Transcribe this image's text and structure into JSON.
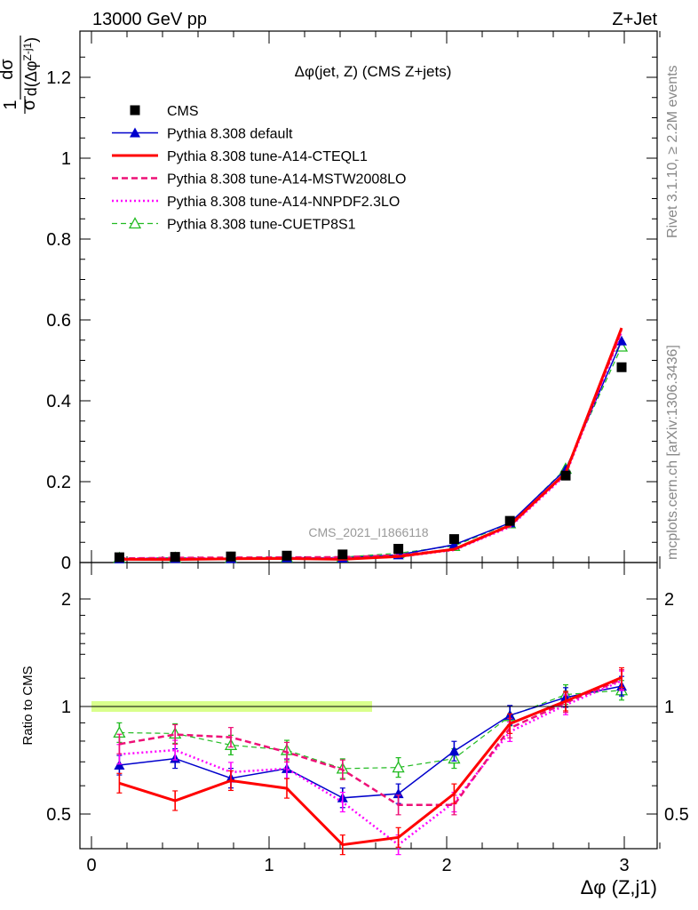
{
  "header": {
    "left": "13000 GeV pp",
    "right": "Z+Jet"
  },
  "plot_title": "Δφ(jet, Z) (CMS Z+jets)",
  "y_axis_label_top": "1/σ dσ/d(Δφ^(Z-j1))",
  "y_axis_label_bottom": "Ratio to CMS",
  "x_axis_label": "Δφ (Z,j1)",
  "side_labels": {
    "rivet": "Rivet 3.1.10, ≥ 2.2M events",
    "source": "mcplots.cern.ch [arXiv:1306.3436]"
  },
  "watermark": "CMS_2021_I1866118",
  "colors": {
    "data": "#000000",
    "default": "#0000cc",
    "cteql1": "#ff0000",
    "mstw": "#ee1077",
    "nnpdf": "#ff00ff",
    "cuetp8s1": "#22bb22",
    "band": "#ccff66"
  },
  "chart_data": [
    {
      "type": "scatter",
      "title": "Δφ(jet, Z) (CMS Z+jets)",
      "xlabel": "Δφ (Z,j1)",
      "ylabel": "1/σ dσ/d(Δφ^(Z-j1))",
      "xlim": [
        -0.1,
        3.2
      ],
      "ylim": [
        0,
        1.3
      ],
      "y_ticks": [
        0,
        0.2,
        0.4,
        0.6,
        0.8,
        1,
        1.2
      ],
      "y_tick_labels": [
        "0",
        "0.2",
        "0.4",
        "0.6",
        "0.8",
        "1",
        "1.2"
      ],
      "legend_position": "top-left",
      "x": [
        0.157,
        0.471,
        0.785,
        1.1,
        1.414,
        1.728,
        2.042,
        2.356,
        2.67,
        2.985
      ],
      "series": [
        {
          "name": "CMS",
          "key": "data",
          "style": "square",
          "values": [
            0.013,
            0.014,
            0.015,
            0.017,
            0.02,
            0.034,
            0.058,
            0.103,
            0.215,
            0.483
          ]
        },
        {
          "name": "Pythia 8.308 default",
          "key": "default",
          "style": "solid-triangle",
          "values": [
            0.009,
            0.01,
            0.0095,
            0.0115,
            0.011,
            0.019,
            0.044,
            0.098,
            0.23,
            0.548
          ]
        },
        {
          "name": "Pythia 8.308 tune-A14-CTEQL1",
          "key": "cteql1",
          "style": "solid-thick",
          "values": [
            0.008,
            0.0075,
            0.0093,
            0.01,
            0.008,
            0.015,
            0.033,
            0.092,
            0.222,
            0.58
          ]
        },
        {
          "name": "Pythia 8.308 tune-A14-MSTW2008LO",
          "key": "mstw",
          "style": "dashed",
          "values": [
            0.0102,
            0.0117,
            0.0123,
            0.0127,
            0.0134,
            0.018,
            0.032,
            0.09,
            0.22,
            0.574
          ]
        },
        {
          "name": "Pythia 8.308 tune-A14-NNPDF2.3LO",
          "key": "nnpdf",
          "style": "dotted",
          "values": [
            0.0095,
            0.0105,
            0.0098,
            0.0114,
            0.0108,
            0.014,
            0.031,
            0.088,
            0.217,
            0.57
          ]
        },
        {
          "name": "Pythia 8.308 tune-CUETP8S1",
          "key": "cuetp8s1",
          "style": "dashed-open-triangle",
          "values": [
            0.011,
            0.0117,
            0.0117,
            0.0128,
            0.0134,
            0.023,
            0.041,
            0.097,
            0.232,
            0.534
          ]
        }
      ]
    },
    {
      "type": "line",
      "title": "",
      "xlabel": "Δφ (Z,j1)",
      "ylabel": "Ratio to CMS",
      "xlim": [
        -0.1,
        3.2
      ],
      "ylim": [
        0.35,
        2.3
      ],
      "y_ticks": [
        0.5,
        1,
        2
      ],
      "y_tick_labels": [
        "0.5",
        "1",
        "2"
      ],
      "x_ticks": [
        0,
        1,
        2,
        3
      ],
      "x_tick_labels": [
        "0",
        "1",
        "2",
        "3"
      ],
      "reference_line": 1,
      "x": [
        0.157,
        0.471,
        0.785,
        1.1,
        1.414,
        1.728,
        2.042,
        2.356,
        2.67,
        2.985
      ],
      "series": [
        {
          "name": "Pythia 8.308 default",
          "key": "default",
          "style": "solid-triangle",
          "values": [
            0.685,
            0.715,
            0.63,
            0.67,
            0.555,
            0.57,
            0.75,
            0.945,
            1.06,
            1.14
          ]
        },
        {
          "name": "Pythia 8.308 tune-A14-CTEQL1",
          "key": "cteql1",
          "style": "solid-thick",
          "values": [
            0.61,
            0.545,
            0.62,
            0.59,
            0.41,
            0.43,
            0.57,
            0.895,
            1.035,
            1.205
          ]
        },
        {
          "name": "Pythia 8.308 tune-A14-MSTW2008LO",
          "key": "mstw",
          "style": "dashed",
          "values": [
            0.785,
            0.835,
            0.82,
            0.745,
            0.665,
            0.53,
            0.53,
            0.87,
            1.025,
            1.19
          ]
        },
        {
          "name": "Pythia 8.308 tune-A14-NNPDF2.3LO",
          "key": "nnpdf",
          "style": "dotted",
          "values": [
            0.735,
            0.755,
            0.655,
            0.67,
            0.54,
            0.41,
            0.54,
            0.85,
            1.01,
            1.18
          ]
        },
        {
          "name": "Pythia 8.308 tune-CUETP8S1",
          "key": "cuetp8s1",
          "style": "dashed-open-triangle",
          "values": [
            0.845,
            0.84,
            0.78,
            0.755,
            0.67,
            0.675,
            0.715,
            0.94,
            1.08,
            1.11
          ]
        }
      ]
    }
  ]
}
